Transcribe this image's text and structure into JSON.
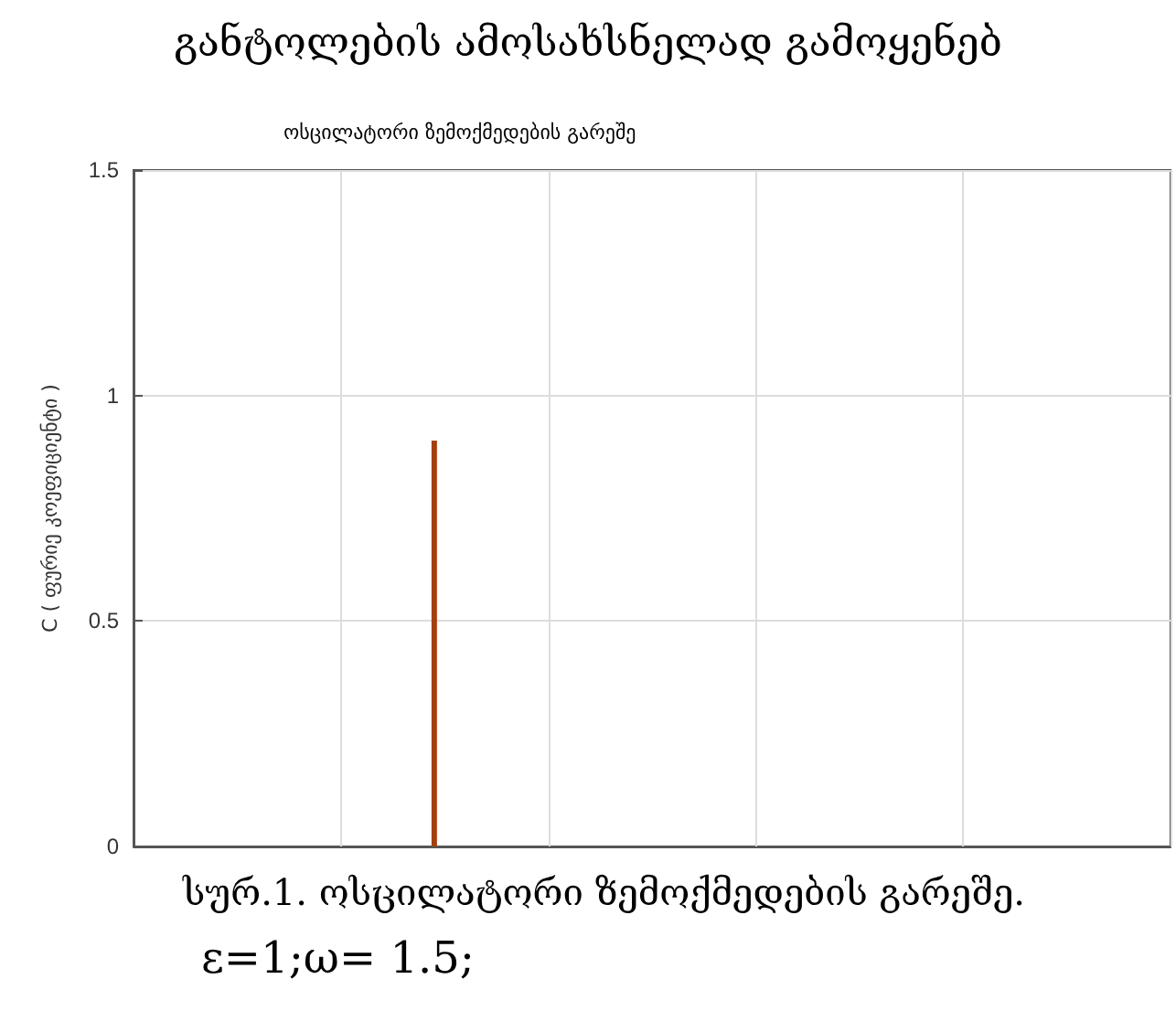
{
  "chart_data": {
    "type": "bar",
    "title": "განტოლების ამოსახსნელად გამოყენებ",
    "subtitle": "ოსცილატორი ზემოქმედების გარეშე",
    "ylabel": "C ( ფურიე კოეფიციენტი )",
    "annotations": [
      "სურ.1. ოსცილატორი ზემოქმედების გარეშე.",
      "ε=1;ω= 1.5;"
    ],
    "categories": [
      null,
      null,
      null,
      null,
      null,
      null,
      null,
      null,
      null,
      null,
      null,
      null,
      null,
      null,
      null,
      null,
      null,
      null,
      null,
      null,
      null,
      null,
      null,
      null,
      null,
      null,
      null,
      null,
      null,
      null,
      null,
      null,
      null,
      null,
      null,
      null,
      null,
      null,
      null,
      null,
      null,
      null,
      null,
      null,
      null,
      null,
      null,
      null,
      null,
      null
    ],
    "series": [
      {
        "color": "#a3400f",
        "values": [
          null,
          null,
          null,
          null,
          null,
          null,
          null,
          null,
          null,
          null,
          null,
          null,
          null,
          null,
          0.9,
          null,
          null,
          null,
          null,
          null,
          null,
          null,
          null,
          null,
          null,
          null,
          null,
          null,
          null,
          null,
          null,
          null,
          null,
          null,
          null,
          null,
          null,
          null,
          null,
          null,
          null,
          null,
          null,
          null,
          null,
          null,
          null,
          null,
          null,
          null
        ]
      }
    ],
    "ylim": [
      0,
      1.5
    ],
    "yticks": [
      0,
      0.5,
      1,
      1.5
    ],
    "grid": true,
    "tick_labels": "y"
  }
}
